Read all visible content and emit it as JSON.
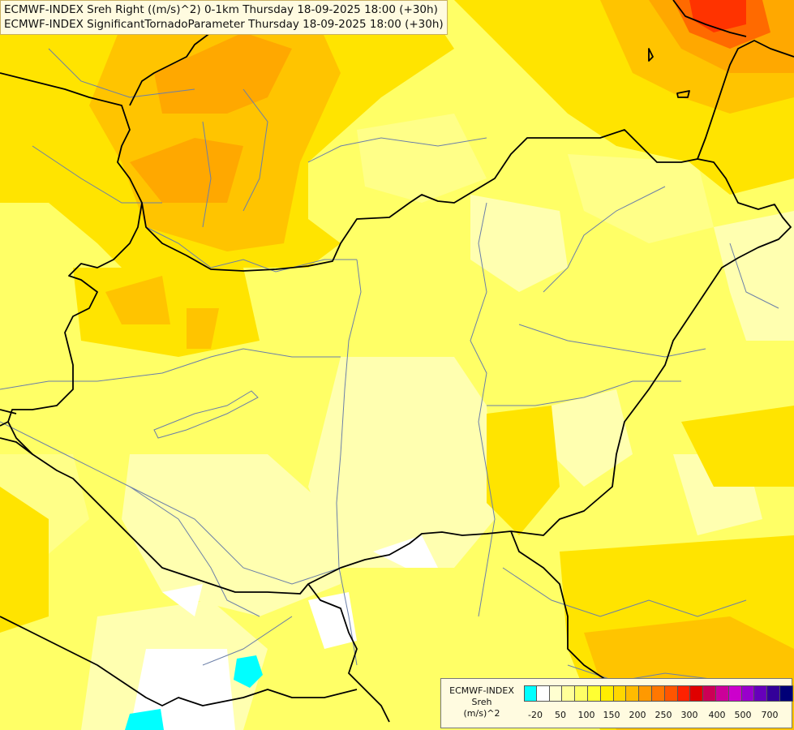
{
  "title": {
    "line1": "ECMWF-INDEX Sreh Right ((m/s)^2) 0-1km Thursday 18-09-2025 18:00 (+30h)",
    "line2": "ECMWF-INDEX SignificantTornadoParameter Thursday 18-09-2025 18:00 (+30h)"
  },
  "legend": {
    "line1": "ECMWF-INDEX",
    "line2": "Sreh",
    "line3": "(m/s)^2",
    "colors": [
      "#00ffff",
      "#ffffff",
      "#ffffd0",
      "#ffff99",
      "#ffff66",
      "#ffff33",
      "#ffee00",
      "#ffd700",
      "#ffbb00",
      "#ff9900",
      "#ff7700",
      "#ff5500",
      "#ff2200",
      "#e00000",
      "#cc0055",
      "#cc0099",
      "#cc00cc",
      "#9900cc",
      "#6600bb",
      "#330099",
      "#000077"
    ],
    "ticks": [
      "-20",
      "50",
      "100",
      "150",
      "200",
      "250",
      "300",
      "400",
      "500",
      "700"
    ]
  },
  "map_colors": {
    "base": "#ffff66",
    "pale": "#ffffb0",
    "light": "#ffff88",
    "gold": "#ffe400",
    "orange_light": "#ffc400",
    "orange": "#ffa800",
    "red": "#ff4400",
    "border": "#000000",
    "river": "#6b7fa8"
  }
}
